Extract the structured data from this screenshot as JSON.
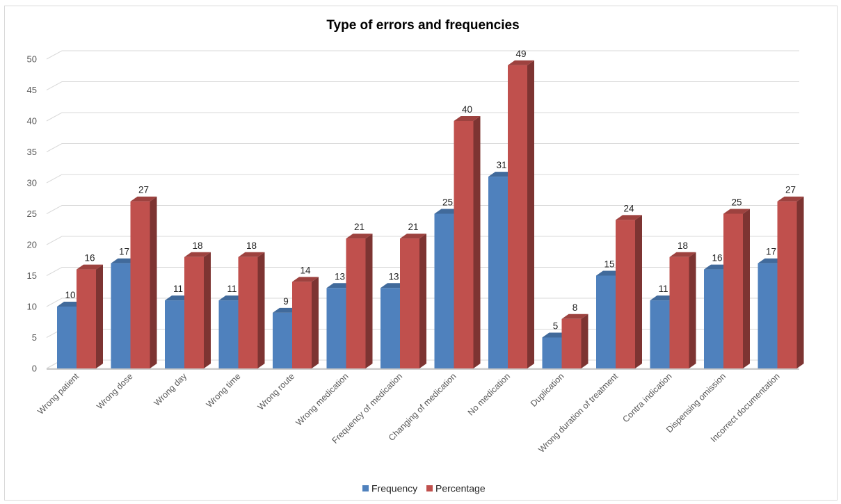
{
  "chart_data": {
    "type": "bar",
    "title": "Type of errors and frequencies",
    "categories": [
      "Wrong patient",
      "Wrong dose",
      "Wrong day",
      "Wrong time",
      "Wrong route",
      "Wrong medication",
      "Frequency of medication",
      "Changing of medication",
      "No medication",
      "Duplication",
      "Wrong duration of treatment",
      "Contra indication",
      "Dispensing omission",
      "Incorrect documentation"
    ],
    "series": [
      {
        "name": "Frequency",
        "color": "#4f81bd",
        "values": [
          10,
          17,
          11,
          11,
          9,
          13,
          13,
          25,
          31,
          5,
          15,
          11,
          16,
          17
        ]
      },
      {
        "name": "Percentage",
        "color": "#c0504d",
        "values": [
          16,
          27,
          18,
          18,
          14,
          21,
          21,
          40,
          49,
          8,
          24,
          18,
          25,
          27
        ]
      }
    ],
    "ylim": [
      0,
      50
    ],
    "yticks": [
      0,
      5,
      10,
      15,
      20,
      25,
      30,
      35,
      40,
      45,
      50
    ],
    "grid": true,
    "legend_position": "bottom",
    "style": "3d-column"
  }
}
